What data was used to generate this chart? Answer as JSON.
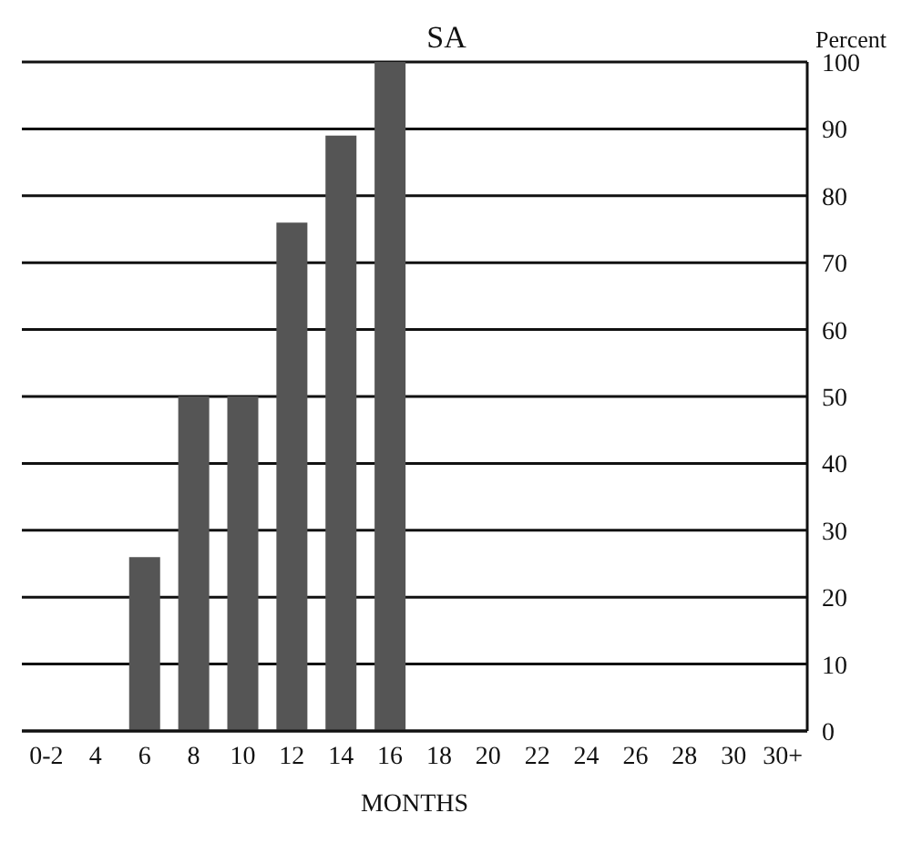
{
  "chart_data": {
    "type": "bar",
    "title": "SA",
    "xlabel": "MONTHS",
    "ylabel": "Percent",
    "categories": [
      "0-2",
      "4",
      "6",
      "8",
      "10",
      "12",
      "14",
      "16",
      "18",
      "20",
      "22",
      "24",
      "26",
      "28",
      "30",
      "30+"
    ],
    "values": [
      0,
      0,
      26,
      50,
      50,
      76,
      89,
      100,
      0,
      0,
      0,
      0,
      0,
      0,
      0,
      0
    ],
    "color": "#555555",
    "ylim": [
      0,
      100
    ],
    "yticks": [
      0,
      10,
      20,
      30,
      40,
      50,
      60,
      70,
      80,
      90,
      100
    ],
    "grid": "y"
  }
}
